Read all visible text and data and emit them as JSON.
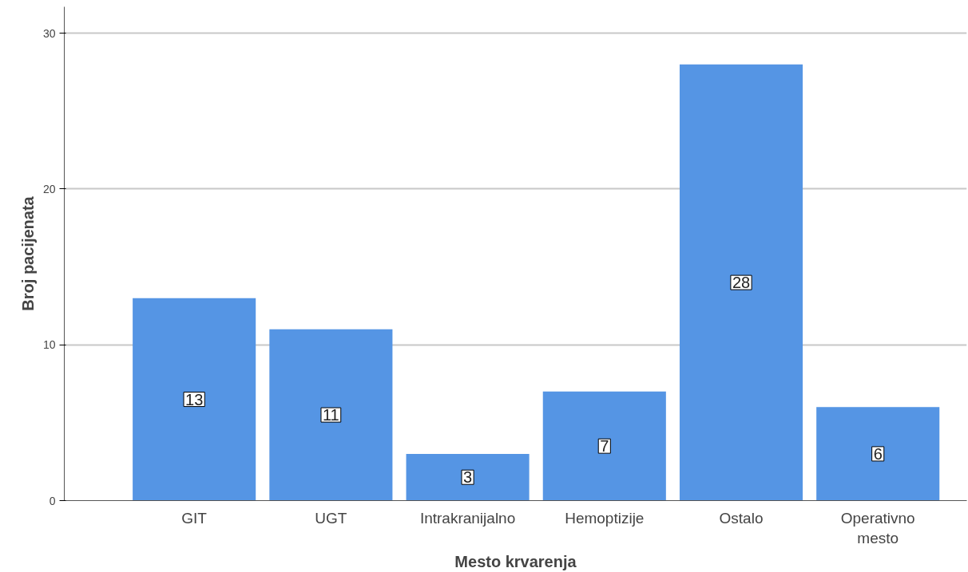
{
  "chart_data": {
    "type": "bar",
    "xlabel": "Mesto krvarenja",
    "ylabel": "Broj pacijenata",
    "categories": [
      "GIT",
      "UGT",
      "Intrakranijalno",
      "Hemoptizije",
      "Ostalo",
      "Operativno mesto"
    ],
    "values": [
      13,
      11,
      3,
      7,
      28,
      6
    ],
    "color": "#5595e4",
    "ylim": [
      0,
      31.7
    ],
    "yticks": [
      0,
      10,
      20,
      30
    ],
    "grid": "y",
    "data_labels": true
  }
}
